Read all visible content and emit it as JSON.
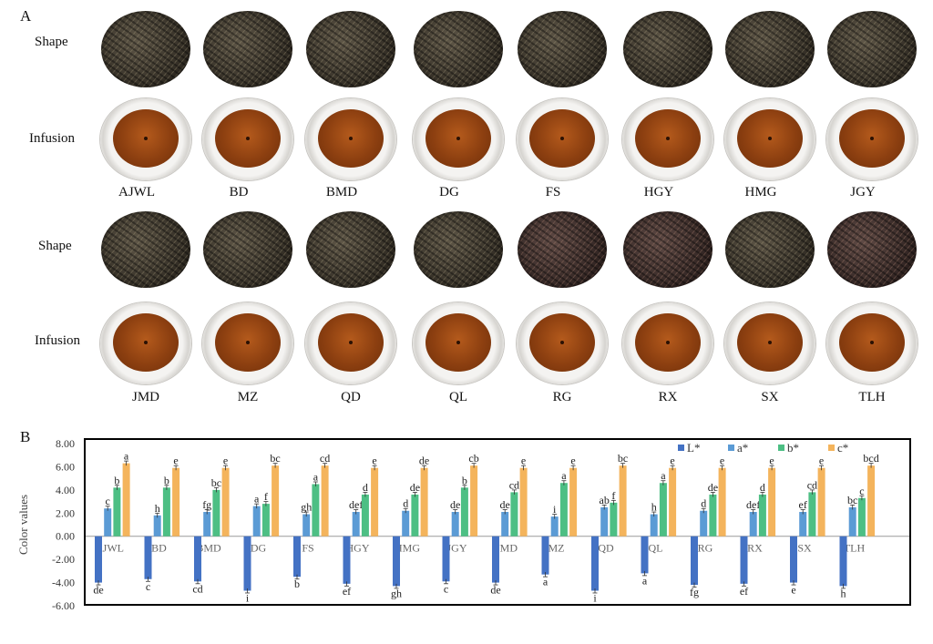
{
  "panel_a": {
    "letter": "A",
    "row_shape_label": "Shape",
    "row_infusion_label": "Infusion",
    "samples_top": [
      "AJWL",
      "BD",
      "BMD",
      "DG",
      "FS",
      "HGY",
      "HMG",
      "JGY"
    ],
    "samples_bottom": [
      "JMD",
      "MZ",
      "QD",
      "QL",
      "RG",
      "RX",
      "SX",
      "TLH"
    ]
  },
  "panel_b": {
    "letter": "B"
  },
  "colors": {
    "L": "#4472c4",
    "a": "#5b9bd5",
    "b": "#4dbf84",
    "c": "#f4b45c"
  },
  "chart_data": {
    "type": "bar",
    "ylabel": "Color values",
    "ylim": [
      -6,
      8
    ],
    "yticks": [
      "-6.00",
      "-4.00",
      "-2.00",
      "0.00",
      "2.00",
      "4.00",
      "6.00",
      "8.00"
    ],
    "legend_position": "top-right",
    "categories": [
      "AJWL",
      "BD",
      "BMD",
      "DG",
      "FS",
      "HGY",
      "HMG",
      "JGY",
      "JMD",
      "MZ",
      "QD",
      "QL",
      "RG",
      "RX",
      "SX",
      "TLH"
    ],
    "series": [
      {
        "name": "L*",
        "values": [
          -4.0,
          -3.7,
          -3.9,
          -4.7,
          -3.5,
          -4.1,
          -4.3,
          -3.9,
          -4.0,
          -3.3,
          -4.7,
          -3.2,
          -4.2,
          -4.1,
          -4.0,
          -4.3
        ],
        "letters": [
          "de",
          "c",
          "cd",
          "i",
          "b",
          "ef",
          "gh",
          "c",
          "de",
          "a",
          "i",
          "a",
          "fg",
          "ef",
          "e",
          "h"
        ]
      },
      {
        "name": "a*",
        "values": [
          2.4,
          1.8,
          2.1,
          2.6,
          1.9,
          2.1,
          2.2,
          2.1,
          2.1,
          1.7,
          2.5,
          1.9,
          2.2,
          2.1,
          2.1,
          2.5
        ],
        "letters": [
          "c",
          "h",
          "fg",
          "a",
          "gh",
          "def",
          "d",
          "de",
          "de",
          "i",
          "ab",
          "h",
          "d",
          "def",
          "ef",
          "bc"
        ]
      },
      {
        "name": "b*",
        "values": [
          4.2,
          4.2,
          4.0,
          2.8,
          4.5,
          3.6,
          3.6,
          4.2,
          3.8,
          4.6,
          2.9,
          4.6,
          3.6,
          3.6,
          3.8,
          3.3
        ],
        "letters": [
          "b",
          "b",
          "bc",
          "f",
          "a",
          "d",
          "de",
          "b",
          "cd",
          "a",
          "f",
          "a",
          "de",
          "d",
          "cd",
          "c"
        ]
      },
      {
        "name": "c*",
        "values": [
          6.3,
          5.9,
          5.9,
          6.1,
          6.1,
          5.9,
          5.9,
          6.1,
          5.9,
          5.9,
          6.1,
          5.9,
          5.9,
          5.9,
          5.9,
          6.1
        ],
        "letters": [
          "a",
          "e",
          "e",
          "bc",
          "cd",
          "e",
          "de",
          "cb",
          "e",
          "e",
          "bc",
          "e",
          "e",
          "e",
          "e",
          "bcd"
        ]
      }
    ]
  }
}
